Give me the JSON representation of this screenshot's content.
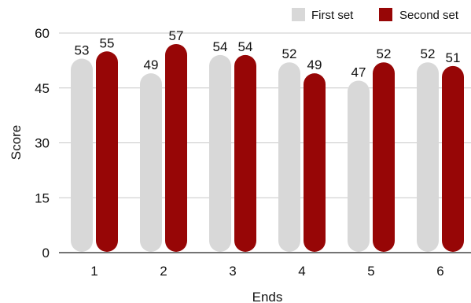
{
  "chart_data": {
    "type": "bar",
    "title": "",
    "xlabel": "Ends",
    "ylabel": "Score",
    "categories": [
      "1",
      "2",
      "3",
      "4",
      "5",
      "6"
    ],
    "ylim": [
      0,
      60
    ],
    "yticks": [
      0,
      15,
      30,
      45,
      60
    ],
    "yticks_text": [
      "0",
      "15",
      "30",
      "45",
      "60"
    ],
    "grid": true,
    "legend_position": "top-right",
    "series": [
      {
        "name": "First set",
        "color": "#d8d8d8",
        "values": [
          53,
          49,
          54,
          52,
          47,
          52
        ],
        "labels": [
          "53",
          "49",
          "54",
          "52",
          "47",
          "52"
        ]
      },
      {
        "name": "Second set",
        "color": "#970606",
        "values": [
          55,
          57,
          54,
          49,
          52,
          51
        ],
        "labels": [
          "55",
          "57",
          "54",
          "49",
          "52",
          "51"
        ]
      }
    ]
  }
}
